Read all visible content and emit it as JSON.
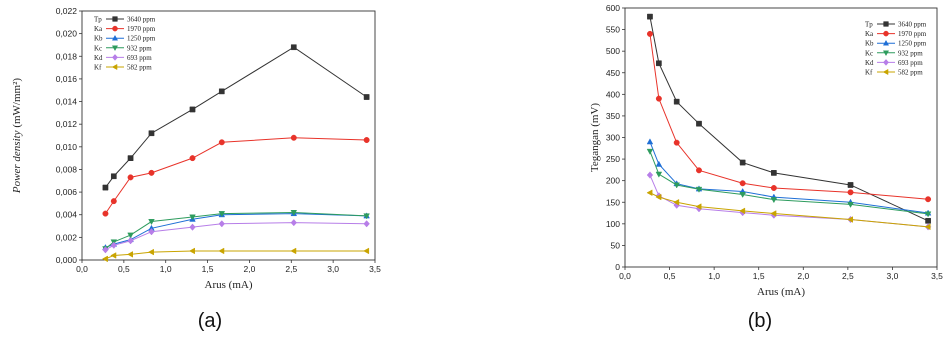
{
  "chart_data": [
    {
      "type": "line",
      "panel_label": "(a)",
      "xlabel": "Arus (mA)",
      "ylabel": "Power density (mW/mm²)",
      "ylabel_italic_part": "Power density",
      "ylabel_rest": " (mW/mm²)",
      "xlim": [
        0.0,
        3.5
      ],
      "ylim": [
        0.0,
        0.022
      ],
      "xticks": [
        "0,0",
        "0,5",
        "1,0",
        "1,5",
        "2,0",
        "2,5",
        "3,0",
        "3,5"
      ],
      "xtick_values": [
        0,
        0.5,
        1.0,
        1.5,
        2.0,
        2.5,
        3.0,
        3.5
      ],
      "yticks": [
        "0,000",
        "0,002",
        "0,004",
        "0,006",
        "0,008",
        "0,010",
        "0,012",
        "0,014",
        "0,016",
        "0,018",
        "0,020",
        "0,022"
      ],
      "ytick_values": [
        0,
        0.002,
        0.004,
        0.006,
        0.008,
        0.01,
        0.012,
        0.014,
        0.016,
        0.018,
        0.02,
        0.022
      ],
      "legend_position": "top-left",
      "series": [
        {
          "code": "Tp",
          "name": "3640 ppm",
          "color": "#333333",
          "marker": "square",
          "x": [
            0.28,
            0.38,
            0.58,
            0.83,
            1.32,
            1.67,
            2.53,
            3.4
          ],
          "y": [
            0.0064,
            0.0074,
            0.009,
            0.0112,
            0.0133,
            0.0149,
            0.0188,
            0.0144
          ]
        },
        {
          "code": "Ka",
          "name": "1970 ppm",
          "color": "#e8332a",
          "marker": "circle",
          "x": [
            0.28,
            0.38,
            0.58,
            0.83,
            1.32,
            1.67,
            2.53,
            3.4
          ],
          "y": [
            0.0041,
            0.0052,
            0.0073,
            0.0077,
            0.009,
            0.0104,
            0.0108,
            0.0106
          ]
        },
        {
          "code": "Kb",
          "name": "1250 ppm",
          "color": "#1f6fd6",
          "marker": "triangle-up",
          "x": [
            0.28,
            0.38,
            0.58,
            0.83,
            1.32,
            1.67,
            2.53,
            3.4
          ],
          "y": [
            0.0011,
            0.0014,
            0.0018,
            0.0028,
            0.0036,
            0.004,
            0.0041,
            0.0039
          ]
        },
        {
          "code": "Kc",
          "name": "932 ppm",
          "color": "#2e9c5e",
          "marker": "triangle-down",
          "x": [
            0.28,
            0.38,
            0.58,
            0.83,
            1.32,
            1.67,
            2.53,
            3.4
          ],
          "y": [
            0.001,
            0.0016,
            0.0022,
            0.0034,
            0.0038,
            0.0041,
            0.0042,
            0.0039
          ]
        },
        {
          "code": "Kd",
          "name": "693 ppm",
          "color": "#b77ee8",
          "marker": "diamond",
          "x": [
            0.28,
            0.38,
            0.58,
            0.83,
            1.32,
            1.67,
            2.53,
            3.4
          ],
          "y": [
            0.0009,
            0.0013,
            0.0017,
            0.0025,
            0.0029,
            0.0032,
            0.0033,
            0.0032
          ]
        },
        {
          "code": "Kf",
          "name": "582 ppm",
          "color": "#c9a400",
          "marker": "triangle-left",
          "x": [
            0.28,
            0.38,
            0.58,
            0.83,
            1.32,
            1.67,
            2.53,
            3.4
          ],
          "y": [
            0.0001,
            0.0004,
            0.0005,
            0.0007,
            0.0008,
            0.0008,
            0.0008,
            0.0008
          ]
        }
      ]
    },
    {
      "type": "line",
      "panel_label": "(b)",
      "xlabel": "Arus (mA)",
      "ylabel": "Tegangan (mV)",
      "xlim": [
        0.0,
        3.5
      ],
      "ylim": [
        0,
        600
      ],
      "xticks": [
        "0,0",
        "0,5",
        "1,0",
        "1,5",
        "2,0",
        "2,5",
        "3,0",
        "3,5"
      ],
      "xtick_values": [
        0,
        0.5,
        1.0,
        1.5,
        2.0,
        2.5,
        3.0,
        3.5
      ],
      "yticks": [
        "0",
        "50",
        "100",
        "150",
        "200",
        "250",
        "300",
        "350",
        "400",
        "450",
        "500",
        "550",
        "600"
      ],
      "ytick_values": [
        0,
        50,
        100,
        150,
        200,
        250,
        300,
        350,
        400,
        450,
        500,
        550,
        600
      ],
      "legend_position": "top-right",
      "series": [
        {
          "code": "Tp",
          "name": "3640 ppm",
          "color": "#333333",
          "marker": "square",
          "x": [
            0.28,
            0.38,
            0.58,
            0.83,
            1.32,
            1.67,
            2.53,
            3.4
          ],
          "y": [
            580,
            472,
            383,
            332,
            242,
            218,
            190,
            107
          ]
        },
        {
          "code": "Ka",
          "name": "1970 ppm",
          "color": "#e8332a",
          "marker": "circle",
          "x": [
            0.28,
            0.38,
            0.58,
            0.83,
            1.32,
            1.67,
            2.53,
            3.4
          ],
          "y": [
            540,
            390,
            288,
            224,
            194,
            183,
            173,
            157
          ]
        },
        {
          "code": "Kb",
          "name": "1250 ppm",
          "color": "#1f6fd6",
          "marker": "triangle-up",
          "x": [
            0.28,
            0.38,
            0.58,
            0.83,
            1.32,
            1.67,
            2.53,
            3.4
          ],
          "y": [
            290,
            238,
            193,
            181,
            175,
            162,
            150,
            125
          ]
        },
        {
          "code": "Kc",
          "name": "932 ppm",
          "color": "#2e9c5e",
          "marker": "triangle-down",
          "x": [
            0.28,
            0.38,
            0.58,
            0.83,
            1.32,
            1.67,
            2.53,
            3.4
          ],
          "y": [
            268,
            215,
            190,
            180,
            168,
            156,
            145,
            123
          ]
        },
        {
          "code": "Kd",
          "name": "693 ppm",
          "color": "#b77ee8",
          "marker": "diamond",
          "x": [
            0.28,
            0.38,
            0.58,
            0.83,
            1.32,
            1.67,
            2.53,
            3.4
          ],
          "y": [
            213,
            165,
            143,
            135,
            126,
            120,
            110,
            93
          ]
        },
        {
          "code": "Kf",
          "name": "582 ppm",
          "color": "#c9a400",
          "marker": "triangle-left",
          "x": [
            0.28,
            0.38,
            0.58,
            0.83,
            1.32,
            1.67,
            2.53,
            3.4
          ],
          "y": [
            172,
            162,
            150,
            140,
            130,
            124,
            110,
            93
          ]
        }
      ]
    }
  ]
}
